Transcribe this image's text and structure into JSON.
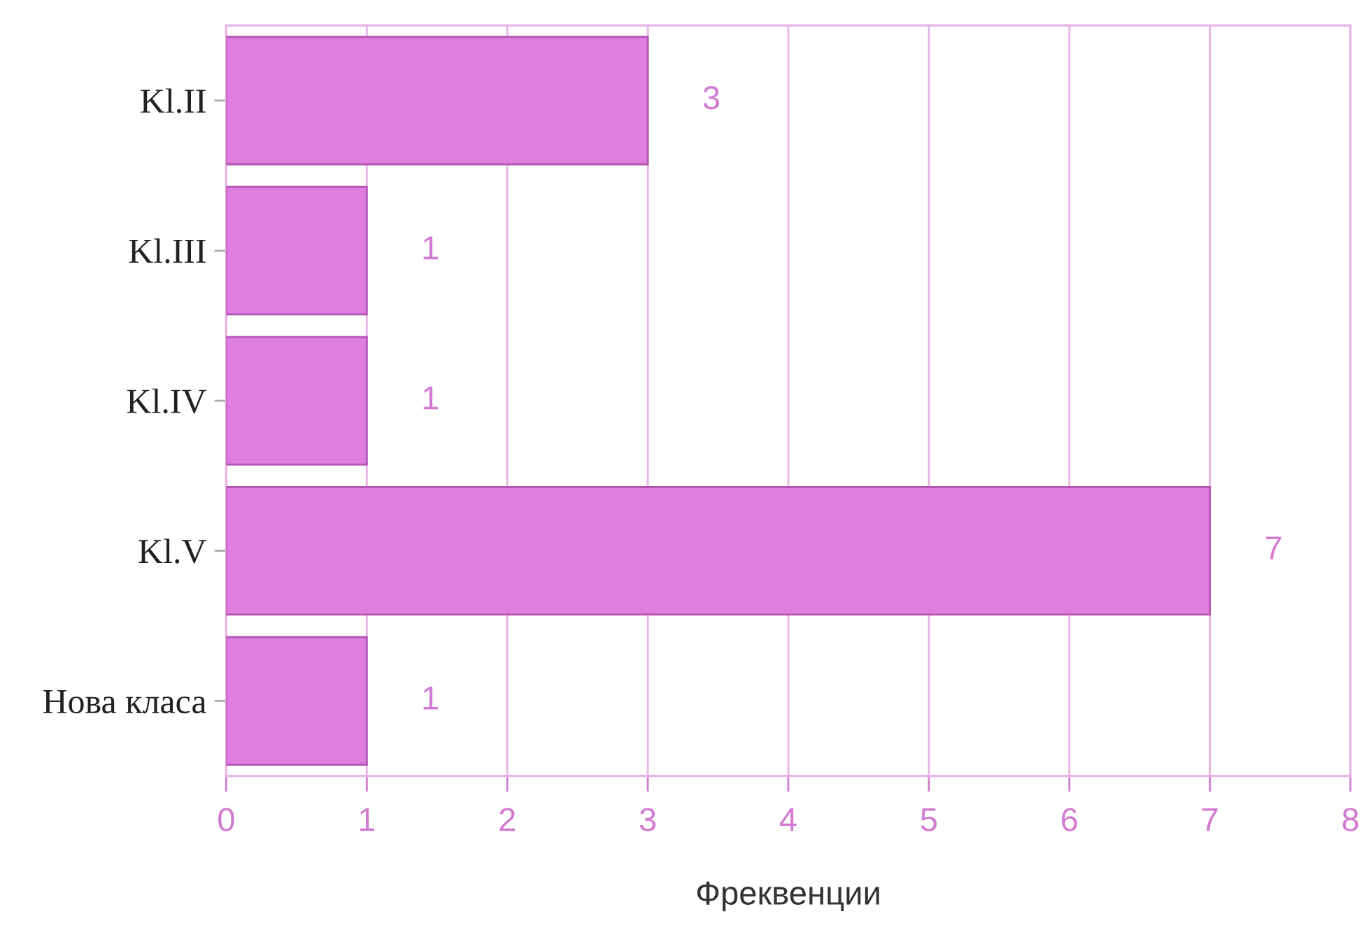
{
  "chart_data": {
    "type": "bar",
    "orientation": "horizontal",
    "categories": [
      "Kl.II",
      "Kl.III",
      "Kl.IV",
      "Kl.V",
      "Нова класа"
    ],
    "values": [
      3,
      1,
      1,
      7,
      1
    ],
    "color": "#e07ee0",
    "xlabel": "Фреквенции",
    "xlim": [
      0,
      8
    ],
    "xticks": [
      0,
      1,
      2,
      3,
      4,
      5,
      6,
      7,
      8
    ],
    "grid": "x",
    "data_labels": true
  }
}
